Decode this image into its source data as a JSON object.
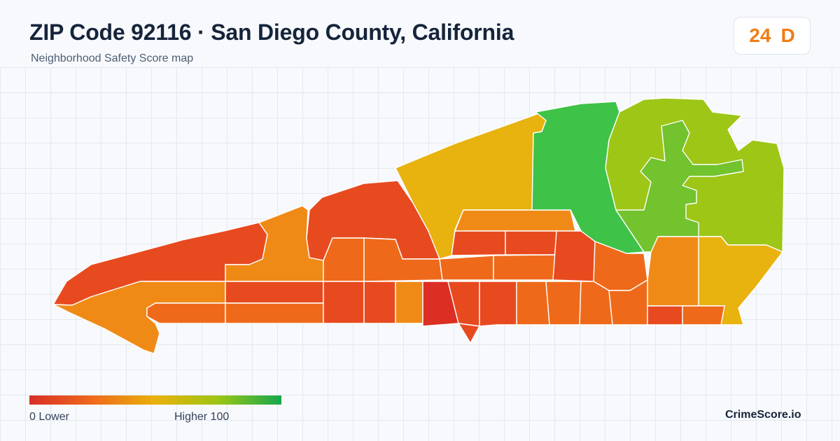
{
  "header": {
    "title": "ZIP Code 92116 · San Diego County, California",
    "subtitle": "Neighborhood Safety Score map"
  },
  "score": {
    "value": "24",
    "grade": "D",
    "color": "#ee7d17"
  },
  "legend": {
    "min_label": "0  Lower",
    "max_label": "Higher  100",
    "min_value": 0,
    "max_value": 100,
    "colors": [
      "#d92e26",
      "#ee6a1a",
      "#e9b10c",
      "#9cc514",
      "#14a84d"
    ]
  },
  "brand": "CrimeScore.io",
  "map": {
    "region_colors": {
      "very_low": "#dc2f24",
      "low": "#e84a20",
      "low_mid": "#ef6b1b",
      "mid": "#f08a16",
      "upper_mid": "#e8b20f",
      "high": "#9dc617",
      "higher": "#72c32e",
      "highest": "#3fc248"
    }
  }
}
